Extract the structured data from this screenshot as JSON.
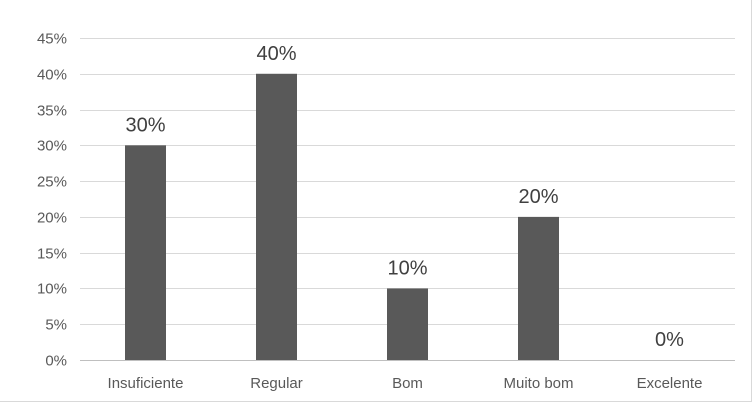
{
  "chart_data": {
    "type": "bar",
    "categories": [
      "Insuficiente",
      "Regular",
      "Bom",
      "Muito bom",
      "Excelente"
    ],
    "values": [
      30,
      40,
      10,
      20,
      0
    ],
    "data_labels": [
      "30%",
      "40%",
      "10%",
      "20%",
      "0%"
    ],
    "yticks": [
      "0%",
      "5%",
      "10%",
      "15%",
      "20%",
      "25%",
      "30%",
      "35%",
      "40%",
      "45%"
    ],
    "ylim": [
      0,
      45
    ],
    "ystep": 5,
    "title": "",
    "xlabel": "",
    "ylabel": "",
    "grid": true,
    "legend": "none",
    "colors": {
      "bar": "#595959",
      "grid": "#d9d9d9",
      "axis": "#bfbfbf"
    }
  }
}
